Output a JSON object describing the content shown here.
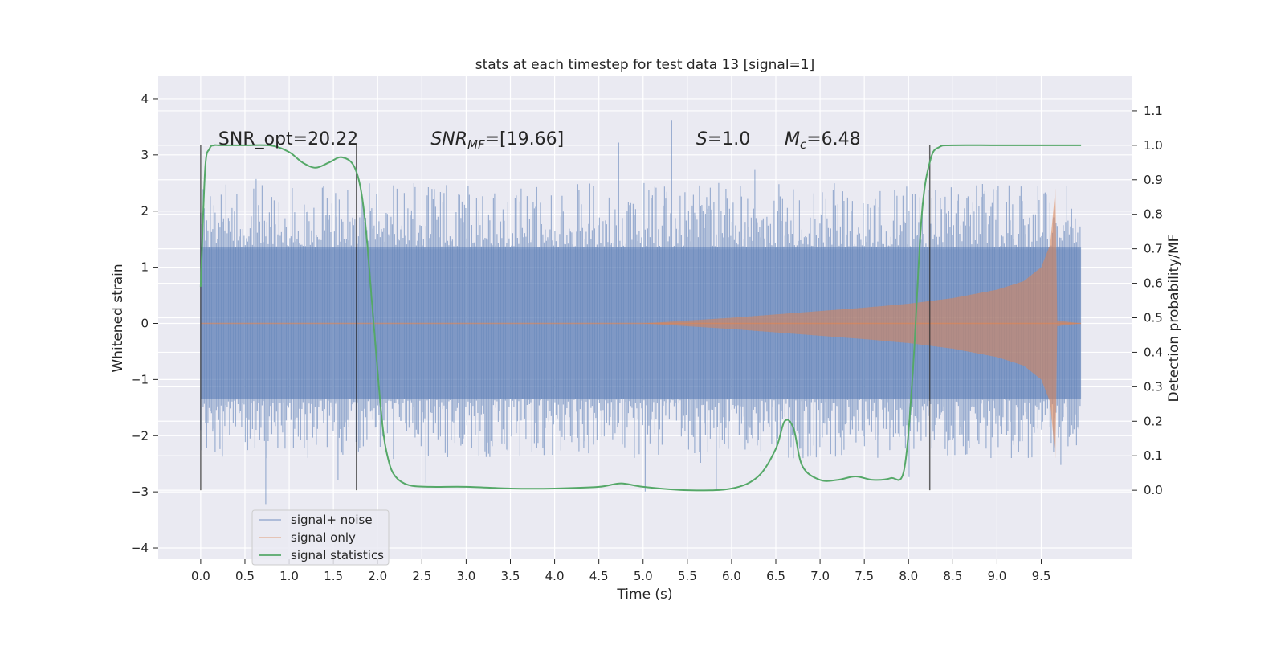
{
  "chart_data": {
    "type": "line",
    "title": "stats at each timestep for test data 13 [signal=1]",
    "xlabel": "Time (s)",
    "ylabel": "Whitened strain",
    "y2label": "Detection probability/MF",
    "xlim": [
      -0.48,
      10.53
    ],
    "ylim": [
      -4.2,
      4.4
    ],
    "y2lim": [
      -0.2,
      1.2
    ],
    "x_ticks": [
      0.0,
      0.5,
      1.0,
      1.5,
      2.0,
      2.5,
      3.0,
      3.5,
      4.0,
      4.5,
      5.0,
      5.5,
      6.0,
      6.5,
      7.0,
      7.5,
      8.0,
      8.5,
      9.0,
      9.5
    ],
    "x_tick_labels": [
      "0.0",
      "0.5",
      "1.0",
      "1.5",
      "2.0",
      "2.5",
      "3.0",
      "3.5",
      "4.0",
      "4.5",
      "5.0",
      "5.5",
      "6.0",
      "6.5",
      "7.0",
      "7.5",
      "8.0",
      "8.5",
      "9.0",
      "9.5"
    ],
    "y_ticks": [
      -4,
      -3,
      -2,
      -1,
      0,
      1,
      2,
      3,
      4
    ],
    "y_tick_labels": [
      "−4",
      "−3",
      "−2",
      "−1",
      "0",
      "1",
      "2",
      "3",
      "4"
    ],
    "y2_ticks": [
      0.0,
      0.1,
      0.2,
      0.3,
      0.4,
      0.5,
      0.6,
      0.7,
      0.8,
      0.9,
      1.0,
      1.1
    ],
    "y2_tick_labels": [
      "0.0",
      "0.1",
      "0.2",
      "0.3",
      "0.4",
      "0.5",
      "0.6",
      "0.7",
      "0.8",
      "0.9",
      "1.0",
      "1.1"
    ],
    "grid": true,
    "legend_position": "lower-left",
    "series": [
      {
        "name": "signal+ noise",
        "color": "#4c72b0",
        "axis": "left",
        "x_range": [
          0.0,
          9.95
        ],
        "core_band": [
          -1.35,
          1.35
        ],
        "typical_peaks": [
          -2.4,
          2.5
        ],
        "max": 4.05,
        "min": -3.55
      },
      {
        "name": "signal only",
        "color": "#dd8452",
        "axis": "left",
        "envelope_points": [
          {
            "x": 5.0,
            "amp": 0.0
          },
          {
            "x": 5.5,
            "amp": 0.05
          },
          {
            "x": 6.0,
            "amp": 0.1
          },
          {
            "x": 6.5,
            "amp": 0.16
          },
          {
            "x": 7.0,
            "amp": 0.22
          },
          {
            "x": 7.5,
            "amp": 0.28
          },
          {
            "x": 8.0,
            "amp": 0.35
          },
          {
            "x": 8.5,
            "amp": 0.45
          },
          {
            "x": 9.0,
            "amp": 0.6
          },
          {
            "x": 9.3,
            "amp": 0.75
          },
          {
            "x": 9.5,
            "amp": 1.0
          },
          {
            "x": 9.6,
            "amp": 1.4
          },
          {
            "x": 9.66,
            "amp": 2.4
          },
          {
            "x": 9.68,
            "amp": 0.05
          },
          {
            "x": 9.95,
            "amp": 0.0
          }
        ]
      },
      {
        "name": "signal statistics",
        "color": "#55a868",
        "axis": "right",
        "x": [
          0.0,
          0.05,
          0.1,
          0.15,
          0.2,
          0.3,
          0.5,
          0.8,
          1.0,
          1.15,
          1.3,
          1.45,
          1.6,
          1.75,
          1.85,
          1.95,
          2.05,
          2.12,
          2.2,
          2.35,
          2.6,
          3.0,
          3.5,
          4.0,
          4.5,
          4.75,
          5.0,
          5.5,
          6.0,
          6.3,
          6.5,
          6.6,
          6.7,
          6.8,
          7.0,
          7.2,
          7.4,
          7.6,
          7.8,
          7.95,
          8.05,
          8.15,
          8.25,
          8.35,
          8.5,
          9.0,
          9.5,
          9.95
        ],
        "y": [
          0.59,
          0.93,
          0.99,
          1.0,
          1.0,
          1.0,
          1.0,
          0.999,
          0.98,
          0.95,
          0.935,
          0.95,
          0.965,
          0.93,
          0.8,
          0.5,
          0.2,
          0.09,
          0.04,
          0.015,
          0.01,
          0.01,
          0.005,
          0.005,
          0.01,
          0.02,
          0.01,
          0.0,
          0.005,
          0.04,
          0.12,
          0.2,
          0.18,
          0.07,
          0.03,
          0.03,
          0.04,
          0.03,
          0.035,
          0.06,
          0.35,
          0.8,
          0.96,
          0.995,
          1.0,
          1.0,
          1.0,
          1.0
        ]
      }
    ],
    "vertical_lines_x": [
      0.0,
      1.76,
      8.24
    ],
    "annotations": [
      {
        "id": "snr-opt",
        "text": "SNR_opt=20.22",
        "x": 0.2
      },
      {
        "id": "snr-mf",
        "base": "SNR",
        "sub": "MF",
        "suffix": "=[19.66]",
        "x": 2.6
      },
      {
        "id": "s",
        "base": "S",
        "suffix": "=1.0",
        "x": 5.6
      },
      {
        "id": "mc",
        "base": "M",
        "sub": "c",
        "suffix": "=6.48",
        "x": 6.6
      }
    ]
  }
}
